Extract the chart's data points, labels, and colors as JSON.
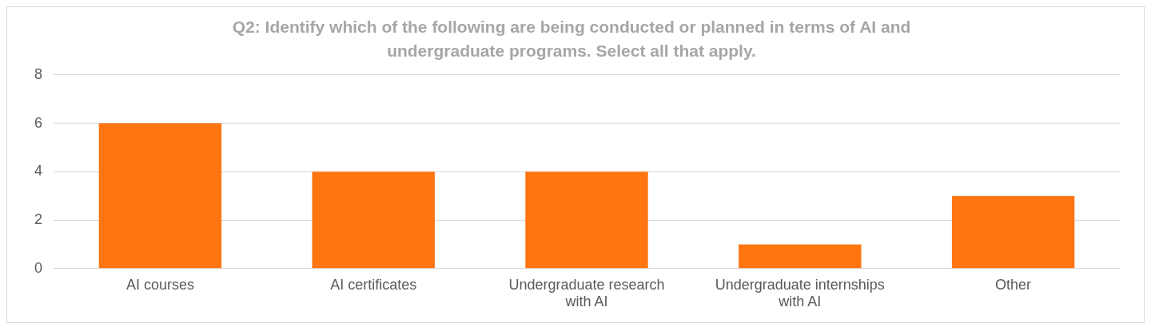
{
  "chart_data": {
    "type": "bar",
    "title": "Q2: Identify which of the following are being conducted or planned in terms of AI and undergraduate programs. Select all that apply.",
    "categories": [
      "AI courses",
      "AI certificates",
      "Undergraduate research with AI",
      "Undergraduate internships with AI",
      "Other"
    ],
    "values": [
      6,
      4,
      4,
      1,
      3
    ],
    "color": "#fe7511",
    "ylim": [
      0,
      8
    ],
    "yticks": [
      0,
      2,
      4,
      6,
      8
    ],
    "grid": "y",
    "legend": false
  }
}
